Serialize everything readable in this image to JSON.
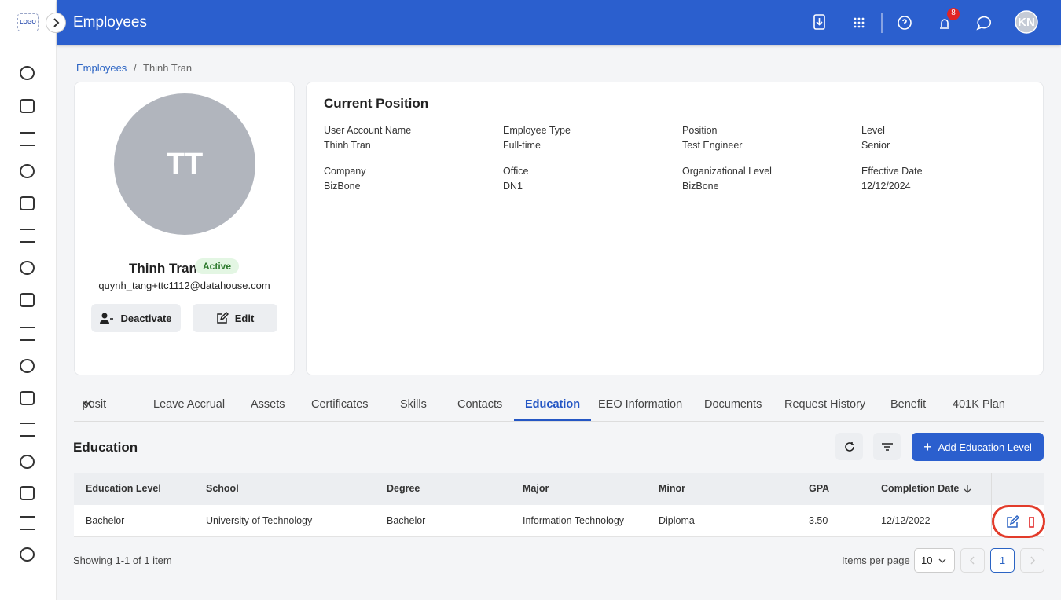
{
  "sidebar": {
    "logo": "LOGO"
  },
  "header": {
    "title": "Employees",
    "notification_count": 8,
    "avatar": "KN"
  },
  "breadcrumb": [
    "Employees",
    "Thinh Tran"
  ],
  "profile": {
    "initials": "TT",
    "name": "Thinh Tran",
    "status": "Active",
    "email": "quynh_tang+ttc1112@datahouse.com",
    "buttons": [
      "Deactivate",
      "Edit"
    ]
  },
  "position": {
    "title": "Current Position",
    "fields": [
      {
        "label": "User Account Name",
        "value": "Thinh Tran"
      },
      {
        "label": "Employee Type",
        "value": "Full-time"
      },
      {
        "label": "Position",
        "value": "Test Engineer"
      },
      {
        "label": "Level",
        "value": "Senior"
      },
      {
        "label": "Company",
        "value": "BizBone"
      },
      {
        "label": "Office",
        "value": "DN1"
      },
      {
        "label": "Organizational Level",
        "value": "BizBone"
      },
      {
        "label": "Effective Date",
        "value": "12/12/2024"
      }
    ]
  },
  "tabs": {
    "items": [
      "Deposit",
      "Leave Accrual",
      "Assets",
      "Certificates",
      "Skills",
      "Contacts",
      "Education",
      "EEO Information",
      "Documents",
      "Request History",
      "Benefit",
      "401K Plan"
    ],
    "active_tab": 6
  },
  "section": {
    "title": "Education",
    "add_button": "Add Education Level"
  },
  "table": {
    "columns": [
      "Education Level",
      "School",
      "Degree",
      "Major",
      "Minor",
      "GPA",
      "Completion Date"
    ],
    "rows": [
      [
        "Bachelor",
        "University of Technology",
        "Bachelor",
        "Information Technology",
        "Diploma",
        "3.50",
        "12/12/2022"
      ]
    ]
  },
  "footer": {
    "summary": "Showing 1-1 of 1 item",
    "items_per_page_label": "Items per page",
    "page_size": 10,
    "current_page": 1
  }
}
